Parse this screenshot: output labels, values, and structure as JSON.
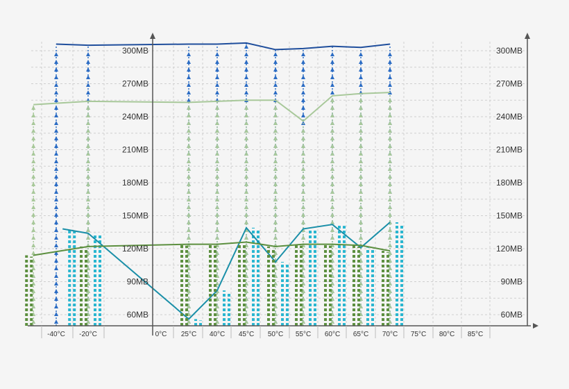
{
  "chart_data": {
    "type": "line",
    "x_categories": [
      "-40°C",
      "-20°C",
      "0°C",
      "25°C",
      "40°C",
      "45°C",
      "50°C",
      "55°C",
      "60°C",
      "65°C",
      "70°C",
      "75°C",
      "80°C",
      "85°C"
    ],
    "y_ticks": [
      "60MB",
      "90MB",
      "120MB",
      "150MB",
      "180MB",
      "210MB",
      "240MB",
      "270MB",
      "300MB"
    ],
    "y_right_ticks": [
      "60MB",
      "90MB",
      "120MB",
      "150MB",
      "180MB",
      "210MB",
      "240MB",
      "270MB",
      "300MB"
    ],
    "ylim": [
      45,
      310
    ],
    "grid": true,
    "legend": "none",
    "series": [
      {
        "style": "solid line with arrow drop-lines",
        "color": "#1f4e9c",
        "arrow_color": "#2b6cc4",
        "points": [
          [
            -40,
            306
          ],
          [
            -20,
            305
          ],
          [
            25,
            306
          ],
          [
            40,
            306
          ],
          [
            45,
            307
          ],
          [
            50,
            301
          ],
          [
            55,
            302
          ],
          [
            60,
            304
          ],
          [
            65,
            303
          ],
          [
            70,
            306
          ]
        ]
      },
      {
        "style": "solid line with arrow drop-lines",
        "color": "#a8c89a",
        "arrow_color": "#a8c89a",
        "points": [
          [
            -44,
            251
          ],
          [
            -20,
            254
          ],
          [
            25,
            253
          ],
          [
            40,
            254
          ],
          [
            45,
            255
          ],
          [
            50,
            255
          ],
          [
            55,
            236
          ],
          [
            60,
            259
          ],
          [
            65,
            261
          ],
          [
            70,
            262
          ]
        ]
      },
      {
        "style": "solid line with dotted drop-bars",
        "color": "#1a8fa8",
        "bar_color": "#29b6d0",
        "points": [
          [
            -36,
            138
          ],
          [
            -20,
            134
          ],
          [
            25,
            56
          ],
          [
            40,
            82
          ],
          [
            45,
            139
          ],
          [
            50,
            108
          ],
          [
            55,
            138
          ],
          [
            60,
            142
          ],
          [
            65,
            121
          ],
          [
            70,
            144
          ]
        ]
      },
      {
        "style": "solid line with dotted drop-bars",
        "color": "#5c8f3f",
        "bar_color": "#5c8f3f",
        "points": [
          [
            -44,
            114
          ],
          [
            -20,
            122
          ],
          [
            25,
            124
          ],
          [
            40,
            124
          ],
          [
            45,
            126
          ],
          [
            50,
            122
          ],
          [
            55,
            124
          ],
          [
            60,
            124
          ],
          [
            65,
            123
          ],
          [
            70,
            118
          ]
        ]
      }
    ]
  }
}
